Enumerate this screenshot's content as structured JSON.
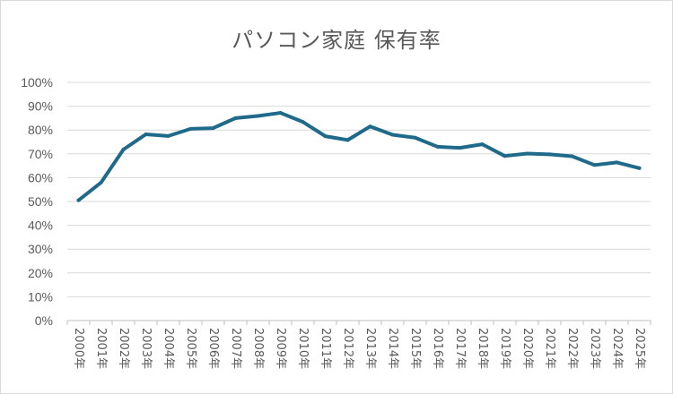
{
  "chart_data": {
    "type": "line",
    "title": "パソコン家庭 保有率",
    "xlabel": "",
    "ylabel": "",
    "categories": [
      "2000年",
      "2001年",
      "2002年",
      "2003年",
      "2004年",
      "2005年",
      "2006年",
      "2007年",
      "2008年",
      "2009年",
      "2010年",
      "2011年",
      "2012年",
      "2013年",
      "2014年",
      "2015年",
      "2016年",
      "2017年",
      "2018年",
      "2019年",
      "2020年",
      "2021年",
      "2022年",
      "2023年",
      "2024年",
      "2025年"
    ],
    "series": [
      {
        "values": [
          50.5,
          57.9,
          71.8,
          78.2,
          77.5,
          80.5,
          80.8,
          85.0,
          85.9,
          87.2,
          83.4,
          77.4,
          75.8,
          81.5,
          78.0,
          76.8,
          73.0,
          72.5,
          74.0,
          69.1,
          70.1,
          69.8,
          69.0,
          65.3,
          66.4,
          64.0
        ],
        "color": "#1f6a8a"
      }
    ],
    "ylim": [
      0,
      100
    ],
    "yticks": [
      0,
      10,
      20,
      30,
      40,
      50,
      60,
      70,
      80,
      90,
      100
    ],
    "ytick_labels": [
      "0%",
      "10%",
      "20%",
      "30%",
      "40%",
      "50%",
      "60%",
      "70%",
      "80%",
      "90%",
      "100%"
    ],
    "grid": true,
    "grid_color": "#d9d9d9",
    "legend": "none"
  }
}
